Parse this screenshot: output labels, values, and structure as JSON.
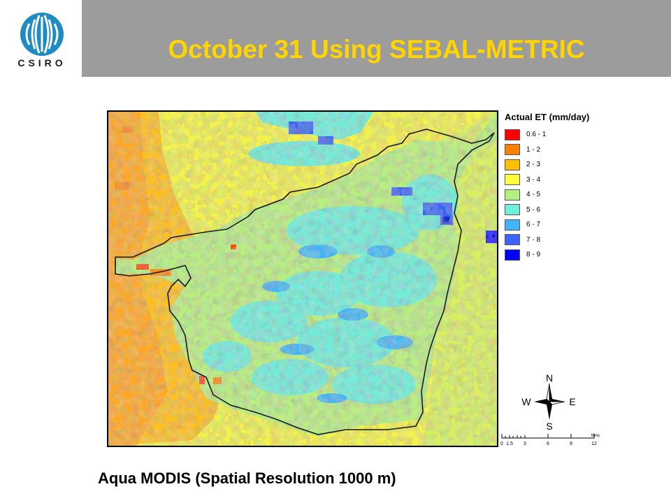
{
  "header": {
    "title": "October 31 Using SEBAL-METRIC",
    "logo_text": "CSIRO",
    "band_color": "#9c9c9c",
    "title_color": "#ffd400"
  },
  "map": {
    "legend": {
      "title": "Actual ET (mm/day)",
      "items": [
        {
          "label": "0.6 - 1",
          "color": "#ff0000"
        },
        {
          "label": "1 - 2",
          "color": "#ff7f00"
        },
        {
          "label": "2 - 3",
          "color": "#ffbf00"
        },
        {
          "label": "3 - 4",
          "color": "#ffff40"
        },
        {
          "label": "4 - 5",
          "color": "#b4f080"
        },
        {
          "label": "5 - 6",
          "color": "#70f0dc"
        },
        {
          "label": "6 - 7",
          "color": "#40b4ff"
        },
        {
          "label": "7 - 8",
          "color": "#3c64ff"
        },
        {
          "label": "8 - 9",
          "color": "#0000ff"
        }
      ]
    },
    "compass": {
      "n": "N",
      "s": "S",
      "e": "E",
      "w": "W"
    },
    "scale": {
      "ticks": [
        "0",
        "1.5",
        "3",
        "6",
        "9",
        "12"
      ],
      "unit": "Kms"
    }
  },
  "caption": "Aqua MODIS (Spatial Resolution 1000 m)"
}
